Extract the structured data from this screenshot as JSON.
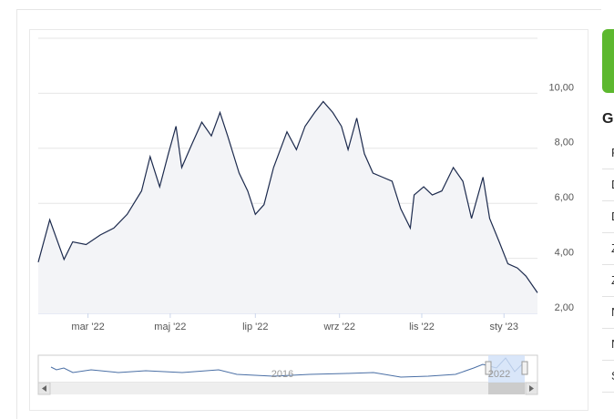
{
  "chart_data": {
    "type": "line",
    "series": [
      {
        "color": "#1c2a4d",
        "x": [
          0,
          1.2,
          2.7,
          3.6,
          5.0,
          6.5,
          7.9,
          9.3,
          10.8,
          11.7,
          12.7,
          13.6,
          14.4,
          15.0,
          16.0,
          17.1,
          18.1,
          19.0,
          19.8,
          21.0,
          21.9,
          22.7,
          23.6,
          24.6,
          26.0,
          27.0,
          27.9,
          28.9,
          29.8,
          30.8,
          31.7,
          32.4,
          33.3,
          34.1,
          35.0,
          36.0,
          37.0,
          37.9,
          38.9,
          39.3,
          40.3,
          41.2,
          42.2,
          43.4,
          44.4,
          45.3,
          46.5,
          47.2,
          48.2,
          49.1,
          50.1,
          51.0,
          52.2
        ],
        "values": [
          3.86,
          5.4,
          3.96,
          4.6,
          4.5,
          4.85,
          5.1,
          5.6,
          6.45,
          7.7,
          6.6,
          7.8,
          8.8,
          7.3,
          8.1,
          8.95,
          8.45,
          9.3,
          8.45,
          7.1,
          6.45,
          5.6,
          5.95,
          7.3,
          8.6,
          7.95,
          8.8,
          9.3,
          9.7,
          9.3,
          8.8,
          7.95,
          9.1,
          7.8,
          7.1,
          6.95,
          6.8,
          5.8,
          5.1,
          6.3,
          6.6,
          6.3,
          6.45,
          7.3,
          6.8,
          5.45,
          6.95,
          5.45,
          4.6,
          3.8,
          3.65,
          3.35,
          2.75
        ]
      }
    ],
    "xlim": [
      0,
      52.2
    ],
    "xticks": [
      {
        "value": 5.2,
        "label": "mar '22"
      },
      {
        "value": 13.8,
        "label": "maj '22"
      },
      {
        "value": 22.7,
        "label": "lip '22"
      },
      {
        "value": 31.5,
        "label": "wrz '22"
      },
      {
        "value": 40.1,
        "label": "lis '22"
      },
      {
        "value": 48.7,
        "label": "sty '23"
      }
    ],
    "ylim": [
      2,
      12
    ],
    "yticks": [
      {
        "value": 2,
        "label": "2,00"
      },
      {
        "value": 4,
        "label": "4,00"
      },
      {
        "value": 6,
        "label": "6,00"
      },
      {
        "value": 8,
        "label": "8,00"
      },
      {
        "value": 10,
        "label": "10,00"
      },
      {
        "value": 12,
        "label": ""
      }
    ],
    "grid": true,
    "navigator_labels": [
      "2016",
      "2022"
    ]
  },
  "sidebar": {
    "heading": "G",
    "rows": [
      "F",
      "D",
      "D",
      "Z",
      "Z",
      "N",
      "N",
      "S"
    ]
  }
}
